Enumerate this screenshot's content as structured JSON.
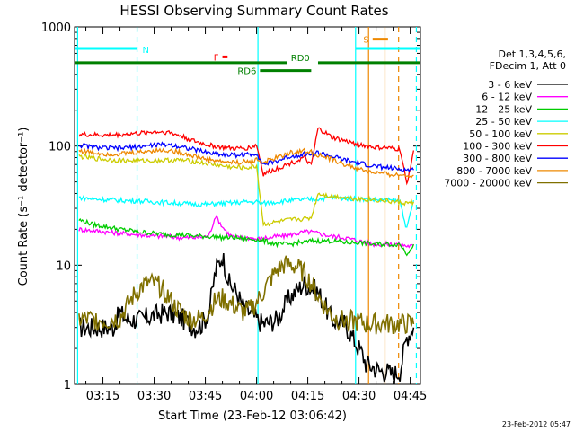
{
  "chart_data": {
    "type": "line",
    "title": "HESSI Observing Summary Count Rates",
    "xlabel": "Start Time (23-Feb-12 03:06:42)",
    "ylabel": "Count Rate (s⁻¹ detector⁻¹)",
    "yscale": "log",
    "ylim": [
      1,
      1000
    ],
    "xlim_minutes": [
      6.7,
      108
    ],
    "y_ticks": [
      "1",
      "10",
      "100",
      "1000"
    ],
    "x_ticks": [
      {
        "label": "03:15",
        "minutes": 15
      },
      {
        "label": "03:30",
        "minutes": 30
      },
      {
        "label": "03:45",
        "minutes": 45
      },
      {
        "label": "04:00",
        "minutes": 60
      },
      {
        "label": "04:15",
        "minutes": 75
      },
      {
        "label": "04:30",
        "minutes": 90
      },
      {
        "label": "04:45",
        "minutes": 105
      }
    ],
    "legend_header": [
      "Det 1,3,4,5,6,",
      "FDecim 1, Att 0"
    ],
    "legend_position": "right",
    "footer_date": "23-Feb-2012 05:47",
    "series": [
      {
        "name": "3 - 6 keV",
        "color": "#000000",
        "x": [
          8,
          10,
          14,
          18,
          20,
          22,
          26,
          30,
          34,
          38,
          42,
          44,
          46,
          48,
          50,
          52,
          54,
          56,
          58,
          60,
          62,
          66,
          70,
          74,
          78,
          82,
          86,
          88,
          90,
          91,
          92,
          94,
          96,
          98,
          100,
          102,
          104,
          106
        ],
        "y": [
          3,
          3,
          3,
          3,
          4,
          3.5,
          3.5,
          3.8,
          4,
          3.6,
          3,
          3.2,
          4,
          9,
          12,
          7,
          6,
          4.5,
          4,
          3.5,
          3.2,
          3.5,
          5.5,
          7,
          6,
          3.5,
          3.2,
          2.5,
          2,
          1.8,
          1.5,
          1.4,
          1.3,
          1.3,
          1.2,
          1.3,
          2.5,
          3
        ]
      },
      {
        "name": "6 - 12 keV",
        "color": "#ff00ff",
        "x": [
          8,
          12,
          16,
          20,
          26,
          30,
          34,
          38,
          42,
          46,
          48,
          50,
          52,
          54,
          58,
          60,
          62,
          64,
          66,
          68,
          70,
          72,
          74,
          76,
          78,
          82,
          86,
          88,
          90,
          92,
          94,
          96,
          98,
          100,
          102,
          104,
          106
        ],
        "y": [
          20,
          19.5,
          19,
          18.5,
          18,
          17.5,
          17.5,
          17,
          17,
          17.5,
          26,
          21,
          18,
          17,
          17,
          16.5,
          17,
          17,
          17.5,
          17.5,
          18,
          18.5,
          19,
          19,
          18.5,
          17.5,
          17,
          16.5,
          16,
          15.5,
          15,
          15,
          15,
          15,
          15,
          14.5,
          14.5
        ]
      },
      {
        "name": "12 - 25 keV",
        "color": "#00cc00",
        "x": [
          8,
          12,
          16,
          20,
          26,
          30,
          34,
          38,
          42,
          46,
          50,
          54,
          58,
          60,
          62,
          64,
          66,
          68,
          70,
          72,
          74,
          76,
          78,
          82,
          86,
          90,
          94,
          98,
          102,
          104,
          106
        ],
        "y": [
          24,
          22,
          21,
          20,
          19,
          18.5,
          18,
          18,
          17.5,
          17.5,
          17,
          17,
          16.5,
          16.5,
          16,
          15.5,
          15,
          15,
          15,
          15.5,
          15.5,
          16,
          16,
          16,
          15.5,
          15.5,
          15,
          15,
          15,
          12.5,
          15
        ]
      },
      {
        "name": "25 - 50 keV",
        "color": "#00ffff",
        "x": [
          8,
          12,
          16,
          20,
          26,
          30,
          34,
          38,
          42,
          46,
          50,
          54,
          58,
          60,
          62,
          66,
          70,
          74,
          78,
          82,
          86,
          90,
          94,
          98,
          102,
          104,
          106
        ],
        "y": [
          37,
          36,
          35.5,
          35,
          34.5,
          34,
          33.5,
          33,
          32.5,
          32.5,
          33,
          33.5,
          34,
          34,
          33,
          34,
          35,
          35.5,
          36,
          37,
          36.5,
          36,
          35.5,
          35,
          34.5,
          20,
          35
        ]
      },
      {
        "name": "50 - 100 keV",
        "color": "#cccc00",
        "x": [
          8,
          12,
          16,
          20,
          26,
          30,
          34,
          38,
          42,
          46,
          50,
          54,
          58,
          60,
          62,
          66,
          70,
          74,
          76,
          78,
          82,
          86,
          90,
          94,
          98,
          102,
          104,
          106
        ],
        "y": [
          82,
          79,
          77,
          76,
          75,
          75.5,
          76,
          76,
          74,
          71,
          68,
          66,
          66,
          68,
          22,
          23,
          24,
          24.5,
          25,
          40,
          38,
          37,
          36,
          35.5,
          34.5,
          33.5,
          33,
          34
        ]
      },
      {
        "name": "100 - 300 keV",
        "color": "#ff0000",
        "x": [
          8,
          12,
          16,
          20,
          26,
          30,
          34,
          38,
          42,
          46,
          50,
          54,
          58,
          60,
          62,
          66,
          70,
          74,
          76,
          78,
          80,
          82,
          86,
          90,
          94,
          98,
          102,
          104,
          106
        ],
        "y": [
          125,
          124,
          123,
          125,
          128,
          132,
          131,
          121,
          109,
          102,
          97,
          95,
          97,
          102,
          58,
          65,
          72,
          80,
          68,
          140,
          130,
          118,
          110,
          103,
          98,
          96,
          94,
          48,
          92
        ]
      },
      {
        "name": "300 - 800 keV",
        "color": "#0000ff",
        "x": [
          8,
          12,
          16,
          20,
          26,
          30,
          34,
          38,
          42,
          46,
          50,
          54,
          58,
          60,
          62,
          66,
          70,
          74,
          76,
          78,
          82,
          86,
          90,
          94,
          98,
          102,
          104,
          106
        ],
        "y": [
          102,
          98,
          96,
          96,
          99,
          102,
          103,
          99,
          93,
          88,
          85,
          84,
          85,
          87,
          70,
          75,
          82,
          86,
          85,
          88,
          82,
          76,
          72,
          68,
          66,
          64,
          63,
          63
        ]
      },
      {
        "name": "800 - 7000 keV",
        "color": "#ee8800",
        "x": [
          8,
          12,
          16,
          20,
          26,
          30,
          34,
          38,
          42,
          46,
          50,
          54,
          58,
          60,
          62,
          66,
          70,
          74,
          76,
          78,
          82,
          86,
          90,
          94,
          98,
          102,
          104,
          106
        ],
        "y": [
          92,
          88,
          86,
          86,
          89,
          92,
          92,
          88,
          82,
          77,
          74,
          73,
          74,
          77,
          73,
          80,
          88,
          91,
          89,
          84,
          77,
          70,
          64,
          60,
          58,
          57,
          57,
          57
        ]
      },
      {
        "name": "7000 - 20000 keV",
        "color": "#807000",
        "x": [
          8,
          12,
          16,
          20,
          22,
          24,
          26,
          28,
          30,
          32,
          34,
          36,
          38,
          40,
          42,
          44,
          46,
          48,
          50,
          52,
          54,
          56,
          58,
          60,
          62,
          64,
          66,
          68,
          70,
          72,
          74,
          76,
          78,
          80,
          82,
          84,
          86,
          88,
          90,
          91,
          92,
          94,
          96,
          98,
          100,
          102,
          104,
          106
        ],
        "y": [
          3.5,
          3.5,
          3.4,
          3.6,
          4.5,
          5.5,
          6.5,
          7,
          7,
          6.5,
          5.5,
          4.5,
          4,
          3.6,
          3.5,
          3.6,
          4.2,
          5,
          5.2,
          4.8,
          4.4,
          4,
          4.2,
          4.8,
          6,
          7.5,
          9,
          10,
          10,
          9.5,
          8.5,
          7,
          5.5,
          4.5,
          3.8,
          3.5,
          3.4,
          3.4,
          3.3,
          3.3,
          3.2,
          3.2,
          3.2,
          3.2,
          3.2,
          3.2,
          3.2,
          3.2
        ]
      }
    ],
    "flag_lines": [
      {
        "label": "N",
        "color": "#00ffff",
        "segments": [
          [
            6.7,
            25
          ],
          [
            89,
            108
          ]
        ],
        "level": 660
      },
      {
        "label": "F",
        "color": "#ff0000",
        "segments": [
          [
            50,
            51.5
          ]
        ],
        "level": 560
      },
      {
        "label": "RD0",
        "color": "#008000",
        "segments": [
          [
            6.7,
            69
          ],
          [
            78,
            108
          ]
        ],
        "level": 500
      },
      {
        "label": "RD6",
        "color": "#008000",
        "segments": [
          [
            61,
            76
          ]
        ],
        "level": 430
      },
      {
        "label": "S",
        "color": "#ee8800",
        "segments": [
          [
            94,
            98.5
          ]
        ],
        "level": 790
      }
    ],
    "vertical_markers": [
      {
        "minutes": 7.6,
        "color": "#00ffff",
        "style": "solid"
      },
      {
        "minutes": 25,
        "color": "#00ffff",
        "style": "dashed"
      },
      {
        "minutes": 60.4,
        "color": "#00ffff",
        "style": "solid"
      },
      {
        "minutes": 89,
        "color": "#00ffff",
        "style": "solid"
      },
      {
        "minutes": 92.8,
        "color": "#ee8800",
        "style": "solid"
      },
      {
        "minutes": 97.6,
        "color": "#ee8800",
        "style": "solid"
      },
      {
        "minutes": 101.6,
        "color": "#ee8800",
        "style": "dashed"
      },
      {
        "minutes": 106.8,
        "color": "#00ffff",
        "style": "dashed"
      }
    ]
  }
}
